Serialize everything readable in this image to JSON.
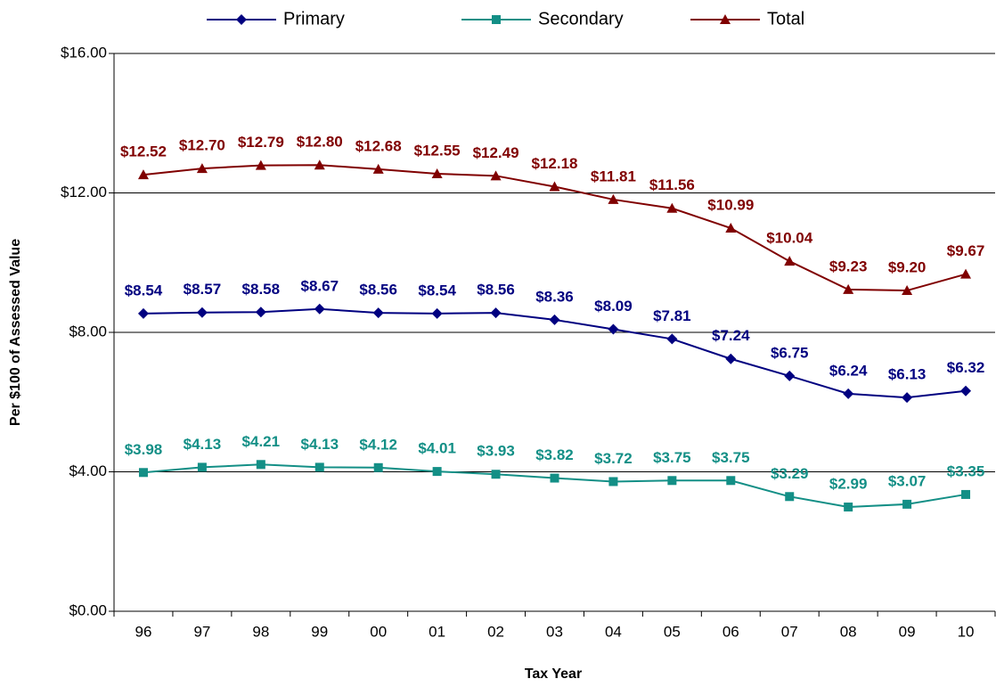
{
  "chart_data": {
    "type": "line",
    "x_label": "Tax Year",
    "y_label": "Per $100 of Assessed Value",
    "categories": [
      "96",
      "97",
      "98",
      "99",
      "00",
      "01",
      "02",
      "03",
      "04",
      "05",
      "06",
      "07",
      "08",
      "09",
      "10"
    ],
    "ylim": [
      0,
      16
    ],
    "yticks": [
      {
        "value": 0,
        "label": "$0.00"
      },
      {
        "value": 4,
        "label": "$4.00"
      },
      {
        "value": 8,
        "label": "$8.00"
      },
      {
        "value": 12,
        "label": "$12.00"
      },
      {
        "value": 16,
        "label": "$16.00"
      }
    ],
    "grid": true,
    "legend": "top",
    "series": [
      {
        "name": "Primary",
        "color": "#000080",
        "marker": "diamond",
        "values": [
          8.54,
          8.57,
          8.58,
          8.67,
          8.56,
          8.54,
          8.56,
          8.36,
          8.09,
          7.81,
          7.24,
          6.75,
          6.24,
          6.13,
          6.32
        ],
        "value_labels": [
          "$8.54",
          "$8.57",
          "$8.58",
          "$8.67",
          "$8.56",
          "$8.54",
          "$8.56",
          "$8.36",
          "$8.09",
          "$7.81",
          "$7.24",
          "$6.75",
          "$6.24",
          "$6.13",
          "$6.32"
        ]
      },
      {
        "name": "Secondary",
        "color": "#138f86",
        "marker": "square",
        "values": [
          3.98,
          4.13,
          4.21,
          4.13,
          4.12,
          4.01,
          3.93,
          3.82,
          3.72,
          3.75,
          3.75,
          3.29,
          2.99,
          3.07,
          3.35
        ],
        "value_labels": [
          "$3.98",
          "$4.13",
          "$4.21",
          "$4.13",
          "$4.12",
          "$4.01",
          "$3.93",
          "$3.82",
          "$3.72",
          "$3.75",
          "$3.75",
          "$3.29",
          "$2.99",
          "$3.07",
          "$3.35"
        ]
      },
      {
        "name": "Total",
        "color": "#800000",
        "marker": "triangle",
        "values": [
          12.52,
          12.7,
          12.79,
          12.8,
          12.68,
          12.55,
          12.49,
          12.18,
          11.81,
          11.56,
          10.99,
          10.04,
          9.23,
          9.2,
          9.67
        ],
        "value_labels": [
          "$12.52",
          "$12.70",
          "$12.79",
          "$12.80",
          "$12.68",
          "$12.55",
          "$12.49",
          "$12.18",
          "$11.81",
          "$11.56",
          "$10.99",
          "$10.04",
          "$9.23",
          "$9.20",
          "$9.67"
        ]
      }
    ]
  }
}
